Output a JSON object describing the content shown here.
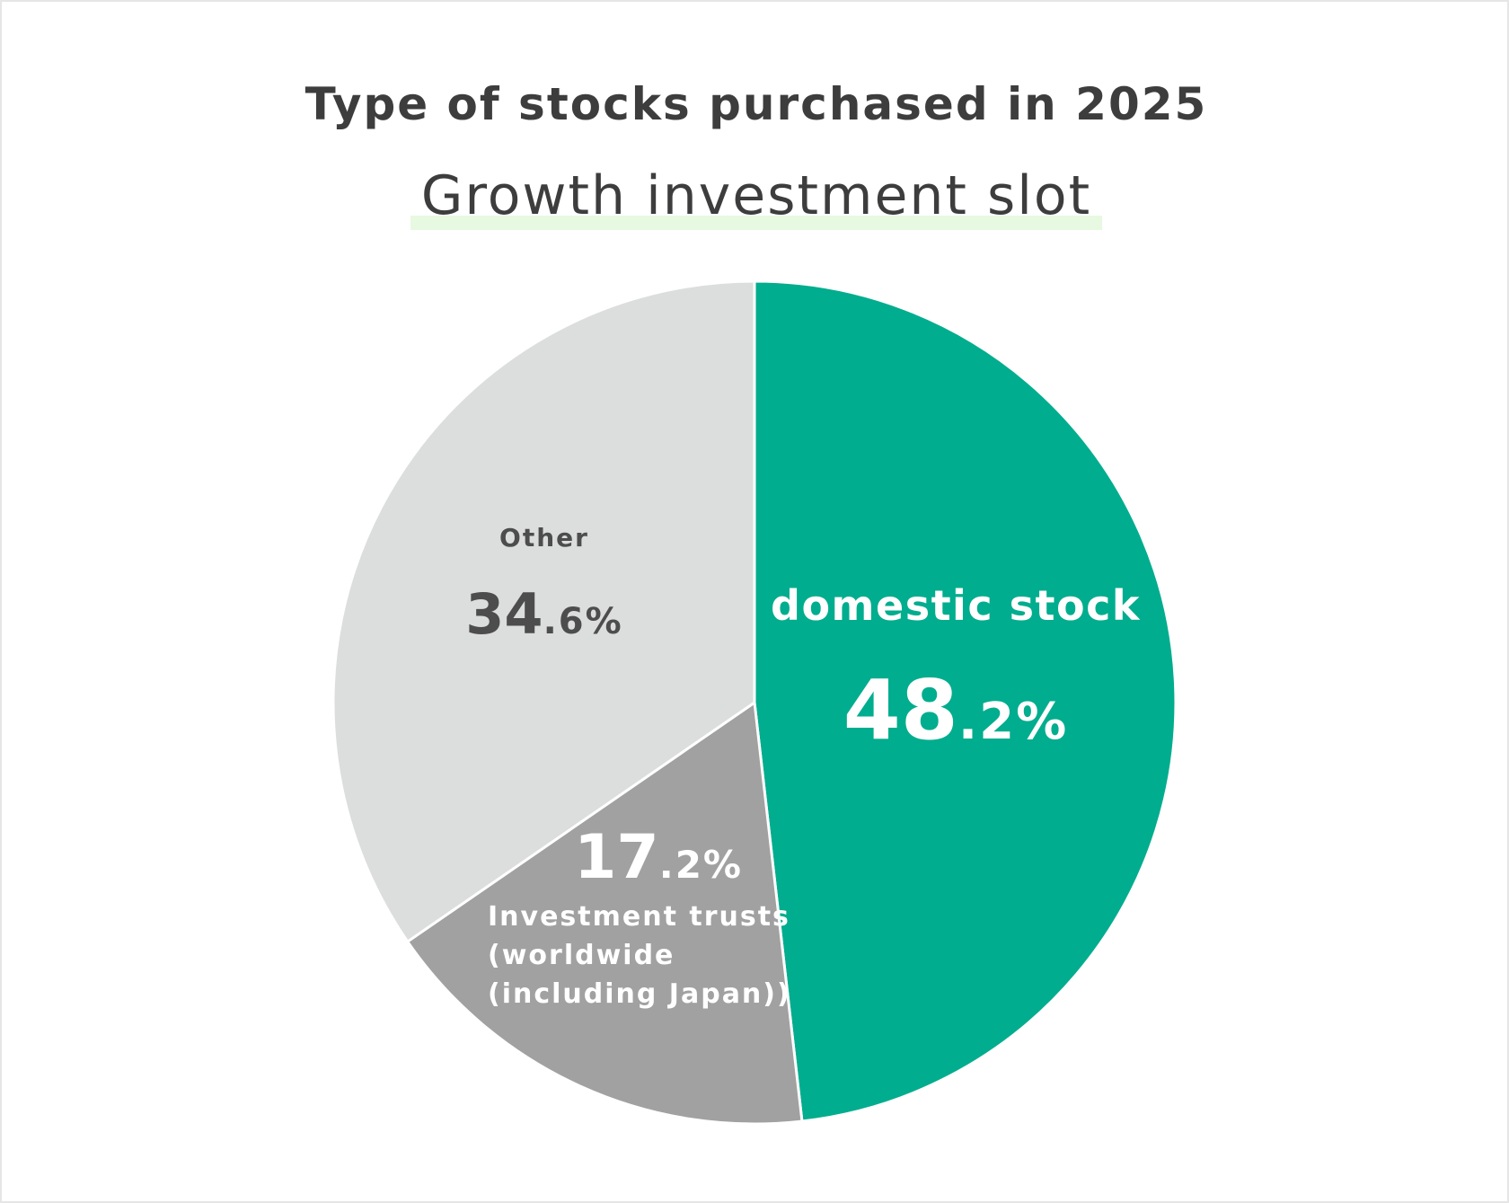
{
  "chart_data": {
    "type": "pie",
    "title": "Type of stocks purchased in 2025",
    "subtitle": "Growth investment slot",
    "slices": [
      {
        "label": "domestic stock",
        "label_lines": [
          "domestic stock"
        ],
        "value": 48.2,
        "value_int": "48",
        "value_dec": ".2%",
        "color": "#00ad8e",
        "label_color": "#ffffff",
        "value_color": "#ffffff"
      },
      {
        "label": "Investment trusts (worldwide (including Japan))",
        "label_lines": [
          "Investment trusts",
          "(worldwide",
          "(including Japan))"
        ],
        "value": 17.2,
        "value_int": "17",
        "value_dec": ".2%",
        "color": "#a0a1a0",
        "label_color": "#ffffff",
        "value_color": "#ffffff"
      },
      {
        "label": "Other",
        "label_lines": [
          "Other"
        ],
        "value": 34.6,
        "value_int": "34",
        "value_dec": ".6%",
        "color": "#dcdddd",
        "label_color": "#4d4d4d",
        "value_color": "#4d4d4d"
      }
    ],
    "legend": "none",
    "separator_color": "#ffffff"
  }
}
